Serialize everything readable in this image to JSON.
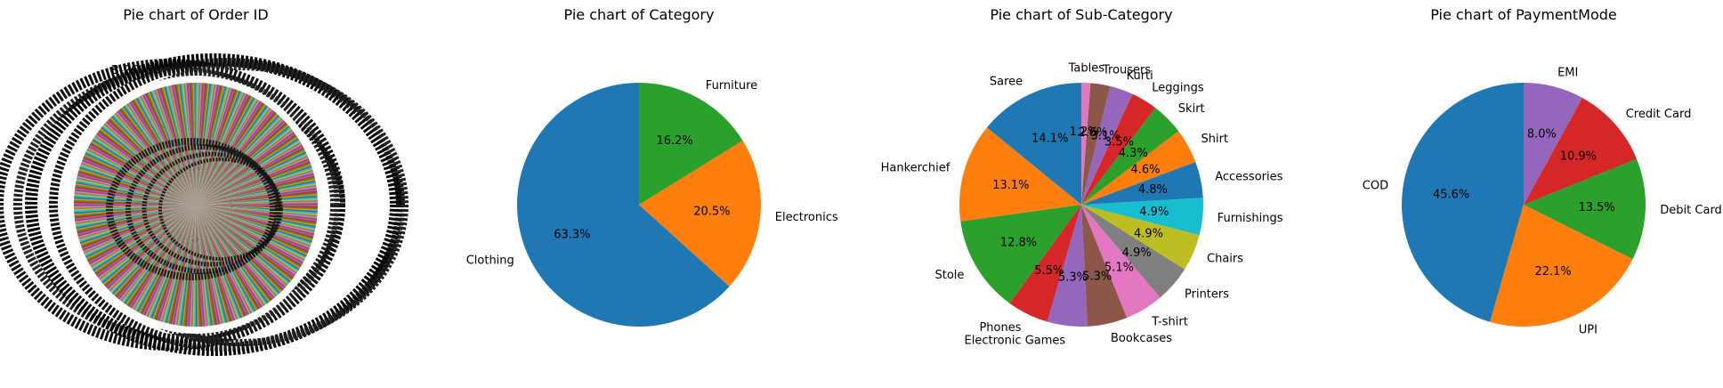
{
  "chart_data": [
    {
      "type": "pie",
      "title": "Pie chart of Order ID",
      "note_label": "B-26056",
      "slice_count": 500,
      "palette": [
        "#1f77b4",
        "#ff7f0e",
        "#2ca02c",
        "#d62728",
        "#9467bd",
        "#8c564b",
        "#e377c2",
        "#7f7f7f",
        "#bcbd22",
        "#17becf"
      ]
    },
    {
      "type": "pie",
      "title": "Pie chart of Category",
      "start_angle": 90,
      "slices": [
        {
          "label": "Clothing",
          "pct": "63.3%",
          "value": 63.3,
          "color": "#1f77b4"
        },
        {
          "label": "Electronics",
          "pct": "20.5%",
          "value": 20.5,
          "color": "#ff7f0e"
        },
        {
          "label": "Furniture",
          "pct": "16.2%",
          "value": 16.2,
          "color": "#2ca02c"
        }
      ]
    },
    {
      "type": "pie",
      "title": "Pie chart of Sub-Category",
      "start_angle": 90,
      "slices": [
        {
          "label": "Saree",
          "pct": "14.1%",
          "value": 14.1,
          "color": "#1f77b4"
        },
        {
          "label": "Hankerchief",
          "pct": "13.1%",
          "value": 13.1,
          "color": "#ff7f0e"
        },
        {
          "label": "Stole",
          "pct": "12.8%",
          "value": 12.8,
          "color": "#2ca02c"
        },
        {
          "label": "Phones",
          "pct": "5.5%",
          "value": 5.5,
          "color": "#d62728"
        },
        {
          "label": "Electronic Games",
          "pct": "5.3%",
          "value": 5.3,
          "color": "#9467bd"
        },
        {
          "label": "Bookcases",
          "pct": "5.3%",
          "value": 5.3,
          "color": "#8c564b"
        },
        {
          "label": "T-shirt",
          "pct": "5.1%",
          "value": 5.1,
          "color": "#e377c2"
        },
        {
          "label": "Printers",
          "pct": "4.9%",
          "value": 4.9,
          "color": "#7f7f7f"
        },
        {
          "label": "Chairs",
          "pct": "4.9%",
          "value": 4.9,
          "color": "#bcbd22"
        },
        {
          "label": "Furnishings",
          "pct": "4.9%",
          "value": 4.9,
          "color": "#17becf"
        },
        {
          "label": "Accessories",
          "pct": "4.8%",
          "value": 4.8,
          "color": "#1f77b4"
        },
        {
          "label": "Shirt",
          "pct": "4.6%",
          "value": 4.6,
          "color": "#ff7f0e"
        },
        {
          "label": "Skirt",
          "pct": "4.3%",
          "value": 4.3,
          "color": "#2ca02c"
        },
        {
          "label": "Leggings",
          "pct": "3.5%",
          "value": 3.5,
          "color": "#d62728"
        },
        {
          "label": "Kurti",
          "pct": "3.1%",
          "value": 3.1,
          "color": "#9467bd"
        },
        {
          "label": "Trousers",
          "pct": "2.6%",
          "value": 2.6,
          "color": "#8c564b"
        },
        {
          "label": "Tables",
          "pct": "1.2%",
          "value": 1.2,
          "color": "#e377c2"
        }
      ]
    },
    {
      "type": "pie",
      "title": "Pie chart of PaymentMode",
      "start_angle": 90,
      "slices": [
        {
          "label": "COD",
          "pct": "45.6%",
          "value": 45.6,
          "color": "#1f77b4"
        },
        {
          "label": "UPI",
          "pct": "22.1%",
          "value": 22.1,
          "color": "#ff7f0e"
        },
        {
          "label": "Debit Card",
          "pct": "13.5%",
          "value": 13.5,
          "color": "#2ca02c"
        },
        {
          "label": "Credit Card",
          "pct": "10.9%",
          "value": 10.9,
          "color": "#d62728"
        },
        {
          "label": "EMI",
          "pct": "8.0%",
          "value": 8.0,
          "color": "#9467bd"
        }
      ]
    }
  ]
}
